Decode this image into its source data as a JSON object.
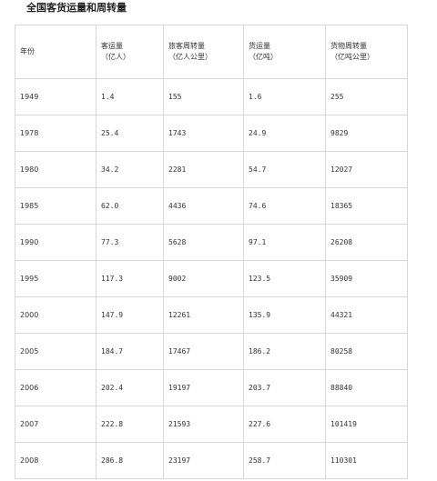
{
  "title": "全国客货运量和周转量",
  "table": {
    "headers": [
      {
        "line1": "年份",
        "line2": ""
      },
      {
        "line1": "客运量",
        "line2": "（亿人）"
      },
      {
        "line1": "旅客周转量",
        "line2": "（亿人公里）"
      },
      {
        "line1": "货运量",
        "line2": "（亿吨）"
      },
      {
        "line1": "货物周转量",
        "line2": "（亿吨公里）"
      }
    ],
    "rows": [
      [
        "1949",
        "1.4",
        "155",
        "1.6",
        "255"
      ],
      [
        "1978",
        "25.4",
        "1743",
        "24.9",
        "9829"
      ],
      [
        "1980",
        "34.2",
        "2281",
        "54.7",
        "12027"
      ],
      [
        "1985",
        "62.0",
        "4436",
        "74.6",
        "18365"
      ],
      [
        "1990",
        "77.3",
        "5628",
        "97.1",
        "26208"
      ],
      [
        "1995",
        "117.3",
        "9002",
        "123.5",
        "35909"
      ],
      [
        "2000",
        "147.9",
        "12261",
        "135.9",
        "44321"
      ],
      [
        "2005",
        "184.7",
        "17467",
        "186.2",
        "80258"
      ],
      [
        "2006",
        "202.4",
        "19197",
        "203.7",
        "88840"
      ],
      [
        "2007",
        "222.8",
        "21593",
        "227.6",
        "101419"
      ],
      [
        "2008",
        "286.8",
        "23197",
        "258.7",
        "110301"
      ]
    ]
  }
}
